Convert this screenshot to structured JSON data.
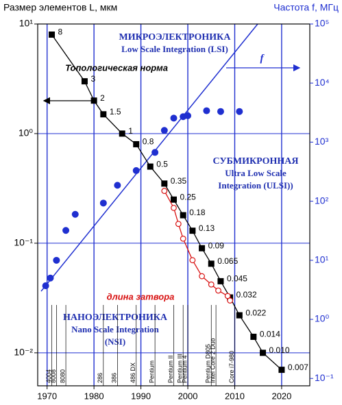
{
  "chart_data": {
    "type": "scatter",
    "y_label": "Размер элементов L, мкм",
    "y2_label": "Частота f, МГц",
    "xlim": [
      1968,
      2026
    ],
    "xticks": [
      1970,
      1980,
      1990,
      2000,
      2010,
      2020
    ],
    "ylim": [
      0.005,
      10
    ],
    "yticks": [
      {
        "value": 10,
        "label": "10¹"
      },
      {
        "value": 1,
        "label": "10⁰"
      },
      {
        "value": 0.1,
        "label": "10⁻¹"
      },
      {
        "value": 0.01,
        "label": "10⁻²"
      }
    ],
    "y2lim": [
      0.075,
      100000
    ],
    "y2ticks": [
      {
        "value": 100000,
        "label": "10⁵"
      },
      {
        "value": 10000,
        "label": "10⁴"
      },
      {
        "value": 1000,
        "label": "10³"
      },
      {
        "value": 100,
        "label": "10²"
      },
      {
        "value": 10,
        "label": "10¹"
      },
      {
        "value": 1,
        "label": "10⁰"
      },
      {
        "value": 0.1,
        "label": "10⁻¹"
      }
    ],
    "log_scale": true,
    "grid": true,
    "series": [
      {
        "name": "Топологическая норма",
        "color": "#000000",
        "marker": "square",
        "line": true,
        "x": [
          1971,
          1978,
          1980,
          1982,
          1986,
          1989,
          1992,
          1995,
          1997,
          1999,
          2001,
          2003,
          2005,
          2007,
          2009,
          2011,
          2014,
          2016,
          2020
        ],
        "values": [
          8,
          3,
          2,
          1.5,
          1,
          0.8,
          0.5,
          0.35,
          0.25,
          0.18,
          0.13,
          0.09,
          0.065,
          0.045,
          0.032,
          0.022,
          0.014,
          0.01,
          0.007
        ],
        "value_labels": [
          "8",
          "3",
          "2",
          "1.5",
          "1",
          "0.8",
          "0.5",
          "0.35",
          "0.25",
          "0.18",
          "0.13",
          "0.09",
          "0.065",
          "0.045",
          "0.032",
          "0.022",
          "0.014",
          "0.010",
          "0.007"
        ]
      },
      {
        "name": "длина затвора",
        "color": "#d81010",
        "marker": "open-circle",
        "line": true,
        "x": [
          1995,
          1997,
          1998,
          1999,
          2001,
          2003,
          2005,
          2006.5,
          2008.5,
          2009
        ],
        "values": [
          0.3,
          0.21,
          0.15,
          0.11,
          0.07,
          0.05,
          0.042,
          0.037,
          0.033,
          0.03
        ]
      },
      {
        "name": "f",
        "color": "#1f2fd0",
        "marker": "circle",
        "line": false,
        "axis": "y2",
        "x": [
          1969.7,
          1970.7,
          1972,
          1974,
          1976,
          1982,
          1985,
          1989,
          1993,
          1995,
          1997,
          1999,
          2000,
          2004,
          2007,
          2011
        ],
        "values": [
          3.7,
          5,
          10,
          32,
          60,
          93,
          186,
          330,
          670,
          1580,
          2550,
          2700,
          2800,
          3400,
          3300,
          3300
        ]
      }
    ],
    "processors": [
      {
        "name": "4004",
        "year": 1971
      },
      {
        "name": "8008",
        "year": 1972
      },
      {
        "name": "8080",
        "year": 1974
      },
      {
        "name": "286",
        "year": 1982
      },
      {
        "name": "386",
        "year": 1985
      },
      {
        "name": "486 DX",
        "year": 1989
      },
      {
        "name": "Pentium",
        "year": 1993
      },
      {
        "name": "Pentium II",
        "year": 1997
      },
      {
        "name": "Pentium III",
        "year": 1999
      },
      {
        "name": "Pentium 4",
        "year": 2000
      },
      {
        "name": "Pentium D805",
        "year": 2005
      },
      {
        "name": "Intel Core 2 Duo",
        "year": 2006
      },
      {
        "name": "Core i7-980",
        "year": 2010
      }
    ],
    "annotations": {
      "micro": [
        "МИКРОЭЛЕКТРОНИКА",
        "Low Scale Integration (LSI)"
      ],
      "submicro": [
        "СУБМИКРОННАЯ",
        "Ultra Low Scale",
        "Integration (ULSI))"
      ],
      "nano": [
        "НАНОЭЛЕКТРОНИКА",
        "Nano Scale Integration",
        "(NSI)"
      ]
    }
  }
}
